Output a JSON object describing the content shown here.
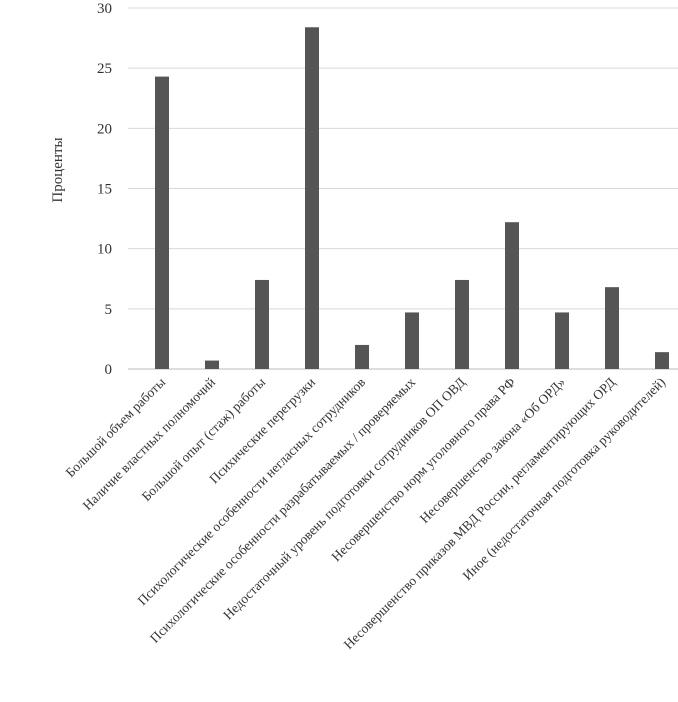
{
  "chart_data": {
    "type": "bar",
    "title": "",
    "xlabel": "",
    "ylabel": "Проценты",
    "ylim": [
      0,
      30
    ],
    "yticks": [
      0,
      5,
      10,
      15,
      20,
      25,
      30
    ],
    "grid": true,
    "bar_color": "#555555",
    "categories": [
      "Большой объем работы",
      "Наличие властных полномочий",
      "Большой опыт (стаж) работы",
      "Психические перегрузки",
      "Психологические особенности негласных сотрудников",
      "Психологические особенности разрабатываемых / проверяемых",
      "Недостаточный уровень подготовки сотрудников ОП ОВД",
      "Несовершенство норм уголовного права РФ",
      "Несовершенство закона «Об ОРД»",
      "Несовершенство приказов МВД России, регламентирующих ОРД",
      "Иное (недостаточная подготовка руководителей)"
    ],
    "values": [
      24.3,
      0.7,
      7.4,
      28.4,
      2.0,
      4.7,
      7.4,
      12.2,
      4.7,
      6.8,
      1.4
    ]
  }
}
